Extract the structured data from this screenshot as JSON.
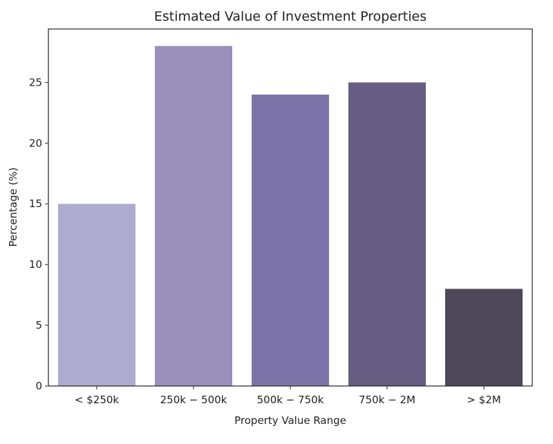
{
  "chart_data": {
    "type": "bar",
    "title": "Estimated Value of Investment Properties",
    "xlabel": "Property Value Range",
    "ylabel": "Percentage (%)",
    "categories": [
      "< $250k",
      "250k − 500k",
      "500k − 750k",
      "750k − 2M",
      "> $2M"
    ],
    "values": [
      15,
      28,
      24,
      25,
      8
    ],
    "colors": [
      "#aeabd0",
      "#9990bb",
      "#7d75aa",
      "#655e82",
      "#4c4859"
    ],
    "ylim": [
      0,
      29.4
    ],
    "yticks": [
      0,
      5,
      10,
      15,
      20,
      25
    ],
    "grid": false
  }
}
